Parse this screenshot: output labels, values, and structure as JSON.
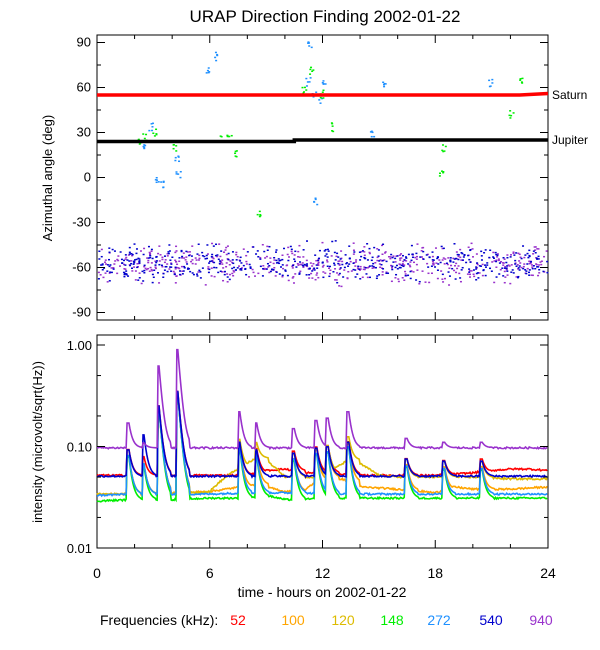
{
  "chart_data": [
    {
      "type": "scatter",
      "title": "URAP Direction Finding  2002-01-22",
      "xlabel": "",
      "ylabel": "Azimuthal angle (deg)",
      "xlim": [
        0,
        24
      ],
      "ylim": [
        -95,
        95
      ],
      "yticks": [
        90,
        60,
        30,
        0,
        -30,
        -60,
        -90
      ],
      "reference_lines": [
        {
          "name": "Saturn",
          "color": "#ff0000",
          "values": [
            [
              0,
              55
            ],
            [
              11,
              55
            ],
            [
              22.5,
              55
            ],
            [
              24,
              56
            ]
          ]
        },
        {
          "name": "Jupiter",
          "color": "#000000",
          "values": [
            [
              0,
              24
            ],
            [
              10.5,
              24
            ],
            [
              10.5,
              25
            ],
            [
              24,
              25
            ]
          ]
        }
      ],
      "series": [
        {
          "name": "940",
          "color": "#9932cc",
          "cluster": {
            "x_range": [
              0,
              24
            ],
            "y_center": -57,
            "y_spread": 9
          }
        },
        {
          "name": "540",
          "color": "#0000cd",
          "cluster": {
            "x_range": [
              0,
              24
            ],
            "y_center": -57,
            "y_spread": 9
          }
        },
        {
          "name": "272",
          "color": "#1e90ff",
          "points": [
            [
              2.4,
              22
            ],
            [
              2.8,
              34
            ],
            [
              3.2,
              -2
            ],
            [
              3.4,
              -4
            ],
            [
              4.2,
              14
            ],
            [
              4.3,
              3
            ],
            [
              5.8,
              73
            ],
            [
              6.3,
              81
            ],
            [
              11.2,
              64
            ],
            [
              11.5,
              57
            ],
            [
              11.8,
              53
            ],
            [
              11.3,
              90
            ],
            [
              12.0,
              64
            ],
            [
              14.6,
              30
            ],
            [
              15.3,
              64
            ],
            [
              20.9,
              64
            ],
            [
              11.6,
              -16
            ]
          ]
        },
        {
          "name": "148",
          "color": "#00ee00",
          "points": [
            [
              2.2,
              24
            ],
            [
              2.5,
              27
            ],
            [
              3.0,
              31
            ],
            [
              4.1,
              20
            ],
            [
              6.5,
              27
            ],
            [
              7.0,
              28
            ],
            [
              7.4,
              16
            ],
            [
              8.6,
              -24
            ],
            [
              11.0,
              58
            ],
            [
              11.4,
              71
            ],
            [
              11.9,
              56
            ],
            [
              12.5,
              34
            ],
            [
              18.4,
              20
            ],
            [
              18.3,
              4
            ],
            [
              22.0,
              43
            ],
            [
              22.5,
              66
            ]
          ]
        }
      ]
    },
    {
      "type": "line",
      "title": "",
      "xlabel": "time - hours on 2002-01-22",
      "ylabel": "intensity (microvolt/sqrt(Hz))",
      "xlim": [
        0,
        24
      ],
      "ylim": [
        0.01,
        1.0
      ],
      "yscale": "log",
      "ytick_labels": [
        "1.00",
        "0.10",
        "0.01"
      ],
      "xticks": [
        "0",
        "6",
        "12",
        "18",
        "24"
      ],
      "series": [
        {
          "name": "52",
          "color": "#ff0000",
          "x": [
            0,
            7,
            8,
            9,
            10,
            11,
            12,
            14,
            16,
            18,
            20,
            21,
            22,
            23,
            24
          ],
          "y": [
            0.052,
            0.052,
            0.052,
            0.058,
            0.06,
            0.055,
            0.055,
            0.052,
            0.052,
            0.052,
            0.055,
            0.058,
            0.06,
            0.06,
            0.058
          ]
        },
        {
          "name": "100",
          "color": "#ffa500",
          "x": [
            0,
            2,
            6,
            8.5,
            10,
            11,
            12,
            13,
            14,
            16,
            18,
            19,
            20,
            22,
            24
          ],
          "y": [
            0.034,
            0.034,
            0.036,
            0.042,
            0.036,
            0.036,
            0.05,
            0.048,
            0.04,
            0.038,
            0.035,
            0.04,
            0.038,
            0.038,
            0.04
          ]
        },
        {
          "name": "120",
          "color": "#ddbb00",
          "x": [
            0,
            4,
            6,
            8.7,
            10,
            12,
            13.5,
            15,
            16,
            18,
            20,
            22,
            24
          ],
          "y": [
            0.034,
            0.034,
            0.036,
            0.08,
            0.05,
            0.05,
            0.075,
            0.052,
            0.05,
            0.05,
            0.05,
            0.048,
            0.048
          ]
        },
        {
          "name": "148",
          "color": "#00ee00",
          "x": [
            0,
            2,
            4,
            6,
            8,
            9,
            10,
            11,
            12,
            14,
            16,
            18,
            20,
            22,
            24
          ],
          "y": [
            0.029,
            0.03,
            0.03,
            0.031,
            0.031,
            0.033,
            0.03,
            0.03,
            0.031,
            0.031,
            0.031,
            0.031,
            0.031,
            0.031,
            0.031
          ]
        },
        {
          "name": "272",
          "color": "#1e90ff",
          "x": [
            0,
            2,
            4,
            6,
            8,
            10,
            11,
            12,
            14,
            16,
            18,
            20,
            22,
            24
          ],
          "y": [
            0.033,
            0.034,
            0.034,
            0.034,
            0.035,
            0.035,
            0.035,
            0.034,
            0.034,
            0.034,
            0.034,
            0.034,
            0.034,
            0.034
          ]
        },
        {
          "name": "540",
          "color": "#0000cd",
          "x": [
            0,
            4,
            8,
            12,
            16,
            20,
            24
          ],
          "y": [
            0.051,
            0.051,
            0.051,
            0.051,
            0.051,
            0.051,
            0.051
          ]
        },
        {
          "name": "940",
          "color": "#9932cc",
          "x": [
            0,
            6,
            12,
            18,
            24
          ],
          "y": [
            0.097,
            0.097,
            0.097,
            0.097,
            0.097
          ]
        }
      ],
      "bursts": [
        {
          "x": 1.7,
          "peak": 0.17,
          "series": "940"
        },
        {
          "x": 2.5,
          "peak": 0.13,
          "series": "540"
        },
        {
          "x": 3.3,
          "peak": 0.62,
          "series": "940"
        },
        {
          "x": 4.3,
          "peak": 0.9,
          "series": "940"
        },
        {
          "x": 7.6,
          "peak": 0.22,
          "series": "940"
        },
        {
          "x": 8.5,
          "peak": 0.17,
          "series": "940"
        },
        {
          "x": 10.5,
          "peak": 0.15,
          "series": "940"
        },
        {
          "x": 11.7,
          "peak": 0.18,
          "series": "940"
        },
        {
          "x": 12.3,
          "peak": 0.19,
          "series": "940"
        },
        {
          "x": 13.4,
          "peak": 0.22,
          "series": "940"
        },
        {
          "x": 16.5,
          "peak": 0.12,
          "series": "940"
        },
        {
          "x": 18.5,
          "peak": 0.11,
          "series": "940"
        },
        {
          "x": 20.5,
          "peak": 0.11,
          "series": "940"
        }
      ]
    }
  ],
  "legend": {
    "label": "Frequencies (kHz):",
    "items": [
      {
        "text": "52",
        "color": "#ff0000"
      },
      {
        "text": "100",
        "color": "#ffa500"
      },
      {
        "text": "120",
        "color": "#ddbb00"
      },
      {
        "text": "148",
        "color": "#00ee00"
      },
      {
        "text": "272",
        "color": "#1e90ff"
      },
      {
        "text": "540",
        "color": "#0000cd"
      },
      {
        "text": "940",
        "color": "#9932cc"
      }
    ]
  }
}
